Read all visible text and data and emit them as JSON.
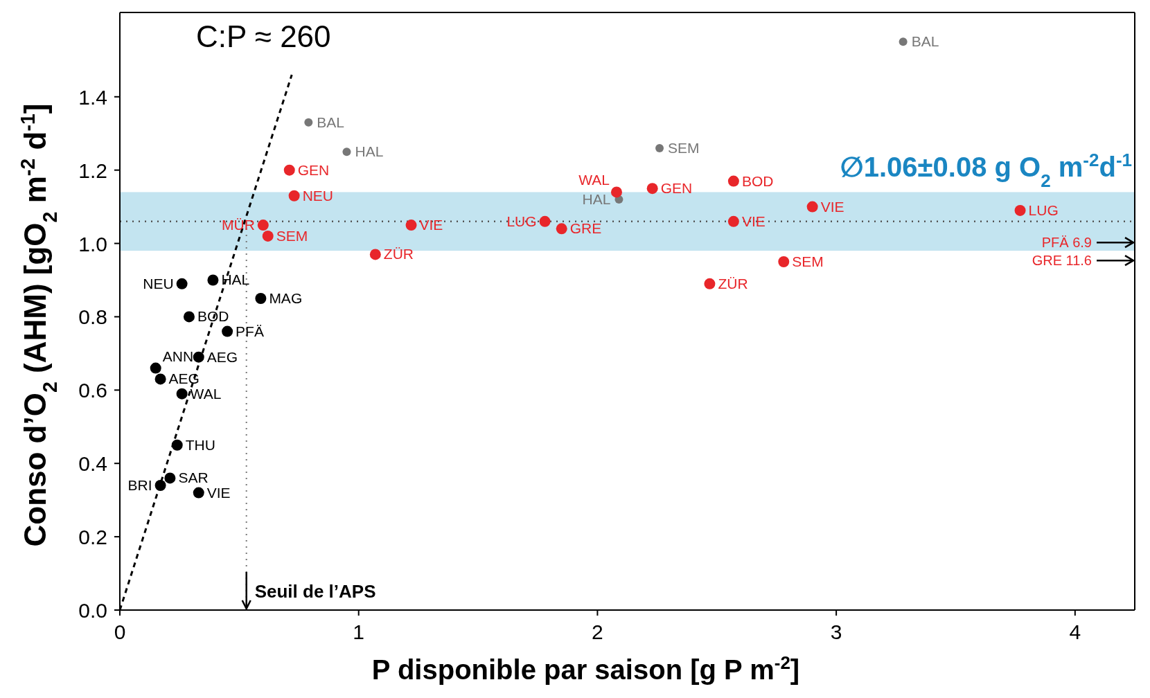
{
  "chart_data": {
    "type": "scatter",
    "xlabel": "P disponible par saison  [g P m$^{-2}$]",
    "ylabel": "Conso d’O$_{2}$ (AHM)   [gO$_{2}$ m$^{-2}$ d$^{-1}$]",
    "xlim": [
      0,
      4.25
    ],
    "xticks": [
      0,
      1,
      2,
      3,
      4
    ],
    "ylim": [
      0,
      1.63
    ],
    "yticks": [
      {
        "value": 0,
        "label": "0.0"
      },
      {
        "value": 0.2,
        "label": "0.2"
      },
      {
        "value": 0.4,
        "label": "0.4"
      },
      {
        "value": 0.6,
        "label": "0.6"
      },
      {
        "value": 0.8,
        "label": "0.8"
      },
      {
        "value": 1.0,
        "label": "1.0"
      },
      {
        "value": 1.2,
        "label": "1.2"
      },
      {
        "value": 1.4,
        "label": "1.4"
      }
    ],
    "marker": "circle",
    "series": [
      {
        "color": "#000000",
        "x": [
          0.26,
          0.39,
          0.29,
          0.45,
          0.15,
          0.17,
          0.33,
          0.26,
          0.24,
          0.21,
          0.17,
          0.33,
          0.59
        ],
        "values": [
          0.89,
          0.9,
          0.8,
          0.76,
          0.66,
          0.63,
          0.69,
          0.59,
          0.45,
          0.36,
          0.34,
          0.32,
          0.85
        ],
        "value_labels": [
          "NEU",
          "HAL",
          "BOD",
          "PFÄ",
          "ANN",
          "AEG",
          "AEG",
          "WAL",
          "THU",
          "SAR",
          "BRI",
          "VIE",
          "MAG"
        ]
      },
      {
        "color": "#777777",
        "x": [
          0.79,
          0.95,
          2.26,
          2.09,
          3.28
        ],
        "values": [
          1.33,
          1.25,
          1.26,
          1.12,
          1.55
        ],
        "value_labels": [
          "BAL",
          "HAL",
          "SEM",
          "HAL",
          "BAL"
        ]
      },
      {
        "color": "#e8262a",
        "x": [
          0.71,
          0.73,
          0.6,
          0.62,
          1.07,
          1.22,
          1.78,
          1.85,
          2.08,
          2.23,
          2.57,
          2.57,
          2.47,
          2.78,
          2.9,
          3.77
        ],
        "values": [
          1.2,
          1.13,
          1.05,
          1.02,
          0.97,
          1.05,
          1.06,
          1.04,
          1.14,
          1.15,
          1.17,
          1.06,
          0.89,
          0.95,
          1.1,
          1.09
        ],
        "value_labels": [
          "GEN",
          "NEU",
          "MÜR",
          "SEM",
          "ZÜR",
          "VIE",
          "LUG",
          "GRE",
          "WAL",
          "GEN",
          "BOD",
          "VIE",
          "ZÜR",
          "SEM",
          "VIE",
          "LUG"
        ]
      },
      {
        "type": "line",
        "color": "#000000",
        "line_style": "dashed",
        "marker": "none",
        "x": [
          0,
          0.72
        ],
        "values": [
          0,
          1.46
        ]
      }
    ],
    "bands": [
      {
        "axis": "y",
        "from": 0.98,
        "to": 1.14,
        "color": "#c3e4f0",
        "label": "∅1.06±0.08 g O$_{2}$ m$^{-2}$d$^{-1}$"
      }
    ],
    "ref_lines": [
      {
        "axis": "y",
        "value": 1.06,
        "color": "#555555",
        "line_style": "dotted"
      },
      {
        "axis": "x",
        "value": 0.53,
        "color": "#777777",
        "line_style": "dotted",
        "label": "Seuil de l’APS"
      }
    ],
    "annotations": [
      "C:P ≈ 260",
      "PFÄ 6.9",
      "GRE 11.6"
    ]
  }
}
